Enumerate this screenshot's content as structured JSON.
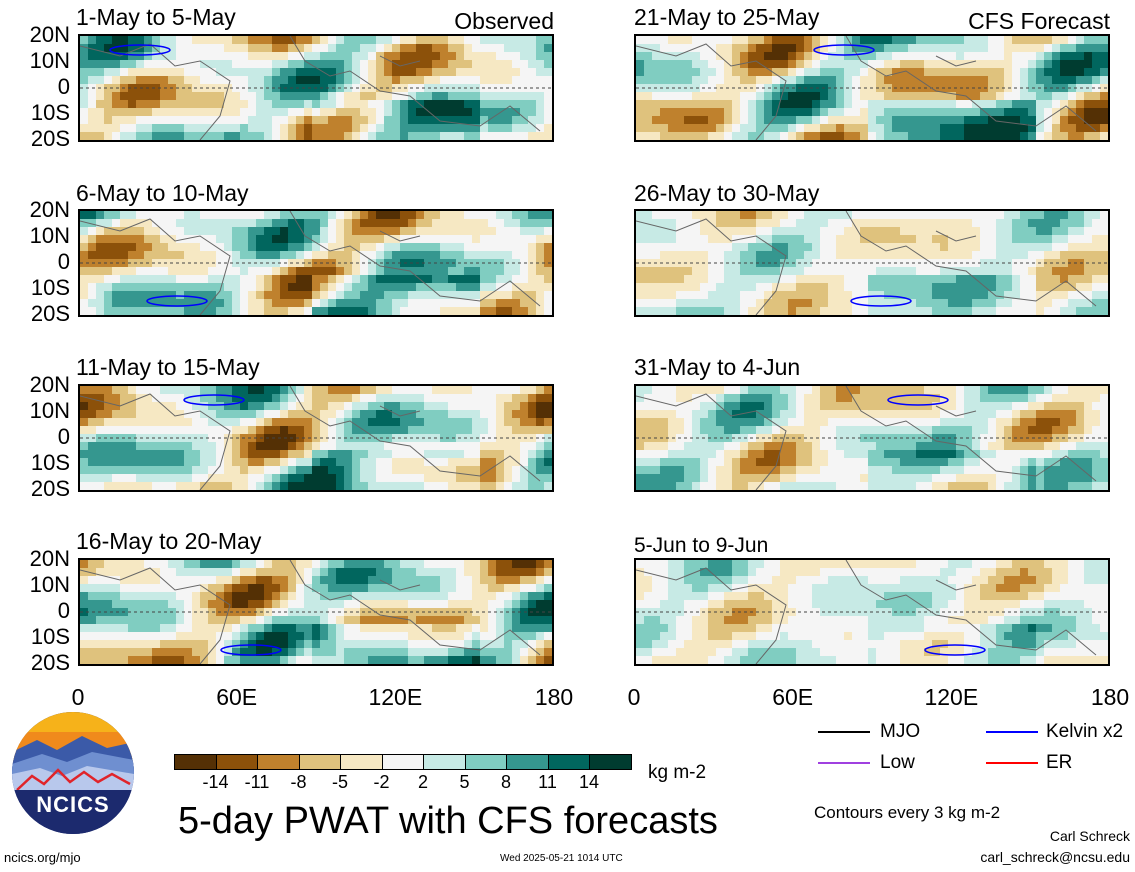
{
  "panels": [
    {
      "title": "1-May to 5-May",
      "tag": "Observed"
    },
    {
      "title": "21-May to 25-May",
      "tag": "CFS Forecast"
    },
    {
      "title": "6-May to 10-May",
      "tag": ""
    },
    {
      "title": "26-May to 30-May",
      "tag": ""
    },
    {
      "title": "11-May to 15-May",
      "tag": ""
    },
    {
      "title": "31-May to 4-Jun",
      "tag": ""
    },
    {
      "title": "16-May to 20-May",
      "tag": ""
    },
    {
      "title": "5-Jun to 9-Jun",
      "tag": ""
    }
  ],
  "lat_labels": [
    "20N",
    "10N",
    "0",
    "10S",
    "20S"
  ],
  "lon_labels": [
    "0",
    "60E",
    "120E",
    "180"
  ],
  "colorbar": {
    "colors": [
      "#543005",
      "#8c510a",
      "#bf812d",
      "#dfc27d",
      "#f6e8c3",
      "#f5f5f5",
      "#c7eae5",
      "#80cdc1",
      "#35978f",
      "#01665e",
      "#003c30"
    ],
    "ticks": [
      "-14",
      "-11",
      "-8",
      "-5",
      "-2",
      "2",
      "5",
      "8",
      "11",
      "14"
    ],
    "units": "kg m-2"
  },
  "title": "5-day PWAT with CFS forecasts",
  "legend": [
    {
      "label": "MJO",
      "color": "#000000"
    },
    {
      "label": "Kelvin x2",
      "color": "#0000ff"
    },
    {
      "label": "Low",
      "color": "#a040e0"
    },
    {
      "label": "ER",
      "color": "#ff0000"
    }
  ],
  "contour_note": "Contours every 3 kg m-2",
  "author": "Carl Schreck",
  "email": "carl_schreck@ncsu.edu",
  "site": "ncics.org/mjo",
  "timestamp": "Wed 2025-05-21 1014 UTC",
  "logo_text": "NCICS",
  "chart_data": {
    "type": "heatmap",
    "variable": "5-day PWAT anomaly",
    "units": "kg m-2",
    "contour_levels": [
      -14,
      -11,
      -8,
      -5,
      -2,
      2,
      5,
      8,
      11,
      14
    ],
    "lat_range": [
      -20,
      20
    ],
    "lon_range": [
      0,
      180
    ],
    "periods": [
      {
        "label": "1-May to 5-May",
        "source": "Observed"
      },
      {
        "label": "6-May to 10-May",
        "source": "Observed"
      },
      {
        "label": "11-May to 15-May",
        "source": "Observed"
      },
      {
        "label": "16-May to 20-May",
        "source": "Observed"
      },
      {
        "label": "21-May to 25-May",
        "source": "CFS Forecast"
      },
      {
        "label": "26-May to 30-May",
        "source": "CFS Forecast"
      },
      {
        "label": "31-May to 4-Jun",
        "source": "CFS Forecast"
      },
      {
        "label": "5-Jun to 9-Jun",
        "source": "CFS Forecast"
      }
    ]
  }
}
